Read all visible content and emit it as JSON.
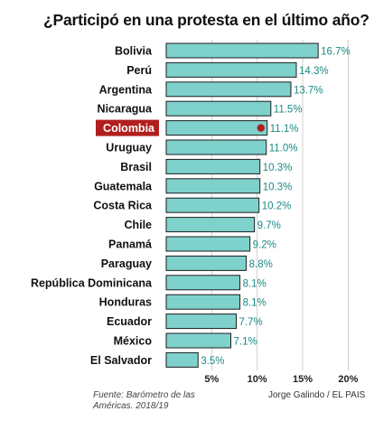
{
  "header": {
    "title": "¿Participó en una protesta en el último año?"
  },
  "footer": {
    "source": "Fuente: Barómetro de las Américas. 2018/19",
    "credit": "Jorge Galindo / EL PAIS"
  },
  "colors": {
    "bar_fill": "#7fd1cc",
    "bar_stroke": "#1d1d1d",
    "value_text": "#1a8a84",
    "highlight_bg": "#b01e1e",
    "highlight_dot": "#b01e1e",
    "grid": "#cfcfcf"
  },
  "chart_data": {
    "type": "bar",
    "orientation": "horizontal",
    "title": "¿Participó en una protesta en el último año?",
    "categories": [
      "Bolivia",
      "Perú",
      "Argentina",
      "Nicaragua",
      "Colombia",
      "Uruguay",
      "Brasil",
      "Guatemala",
      "Costa Rica",
      "Chile",
      "Panamá",
      "Paraguay",
      "República Dominicana",
      "Honduras",
      "Ecuador",
      "México",
      "El Salvador"
    ],
    "values": [
      16.7,
      14.3,
      13.7,
      11.5,
      11.1,
      11.0,
      10.3,
      10.3,
      10.2,
      9.7,
      9.2,
      8.8,
      8.1,
      8.1,
      7.7,
      7.1,
      3.5
    ],
    "value_labels": [
      "16.7%",
      "14.3%",
      "13.7%",
      "11.5%",
      "11.1%",
      "11.0%",
      "10.3%",
      "10.3%",
      "10.2%",
      "9.7%",
      "9.2%",
      "8.8%",
      "8.1%",
      "8.1%",
      "7.7%",
      "7.1%",
      "3.5%"
    ],
    "highlight": "Colombia",
    "xlim": [
      0,
      20
    ],
    "xticks": [
      5,
      10,
      15,
      20
    ],
    "xtick_labels": [
      "5%",
      "10%",
      "15%",
      "20%"
    ],
    "grid": true,
    "xlabel": "",
    "ylabel": ""
  }
}
